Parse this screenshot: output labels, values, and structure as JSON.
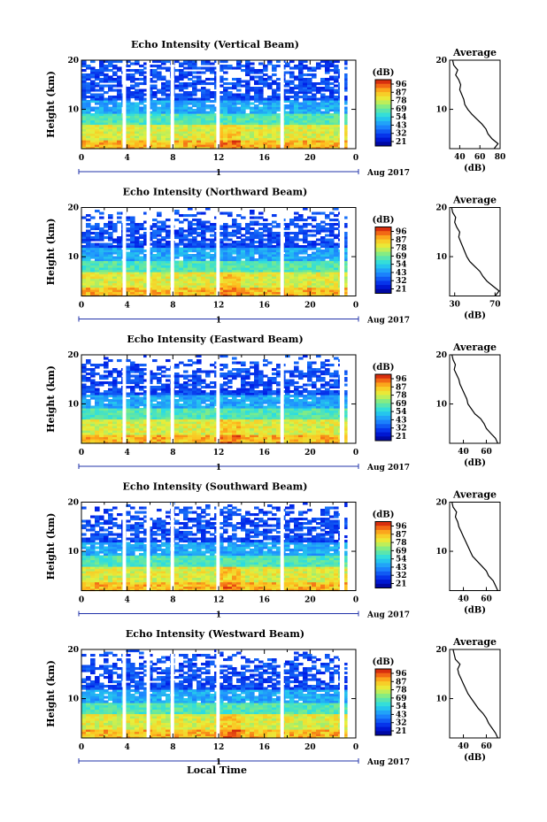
{
  "chart_data": [
    {
      "type": "heatmap",
      "title": "Echo Intensity (Vertical Beam)",
      "ylabel": "Height (km)",
      "xticks": [
        "0",
        "4",
        "8",
        "12",
        "16",
        "20",
        "0"
      ],
      "yticks": [
        "20",
        "10"
      ],
      "ylim": [
        2,
        20
      ],
      "xlim": [
        0,
        24
      ],
      "date_label": "Aug 2017",
      "day_marker": "1",
      "colorbar": {
        "unit": "(dB)",
        "ticks": [
          "96",
          "87",
          "78",
          "69",
          "54",
          "43",
          "32",
          "21"
        ],
        "range": [
          21,
          96
        ]
      },
      "data_gaps_hours": [
        [
          3.6,
          3.9
        ],
        [
          5.7,
          6.0
        ],
        [
          7.8,
          8.1
        ],
        [
          11.8,
          12.1
        ],
        [
          17.4,
          17.7
        ],
        [
          22.6,
          23.0
        ]
      ],
      "average": {
        "title": "Average",
        "xlabel": "(dB)",
        "xticks": [
          "40",
          "60",
          "80"
        ],
        "xlim": [
          30,
          80
        ],
        "profile": [
          [
            2,
            74
          ],
          [
            3,
            78
          ],
          [
            4,
            72
          ],
          [
            5,
            68
          ],
          [
            6,
            66
          ],
          [
            7,
            62
          ],
          [
            8,
            57
          ],
          [
            9,
            52
          ],
          [
            10,
            48
          ],
          [
            11,
            45
          ],
          [
            12,
            44
          ],
          [
            13,
            42
          ],
          [
            14,
            40
          ],
          [
            15,
            41
          ],
          [
            16,
            39
          ],
          [
            17,
            36
          ],
          [
            18,
            38
          ],
          [
            19,
            34
          ],
          [
            20,
            33
          ]
        ]
      }
    },
    {
      "type": "heatmap",
      "title": "Echo Intensity (Northward Beam)",
      "ylabel": "Height (km)",
      "xticks": [
        "0",
        "4",
        "8",
        "12",
        "16",
        "20",
        "0"
      ],
      "yticks": [
        "20",
        "10"
      ],
      "ylim": [
        2,
        20
      ],
      "xlim": [
        0,
        24
      ],
      "date_label": "Aug 2017",
      "day_marker": "1",
      "colorbar": {
        "unit": "(dB)",
        "ticks": [
          "96",
          "87",
          "78",
          "69",
          "54",
          "43",
          "32",
          "21"
        ],
        "range": [
          21,
          96
        ]
      },
      "data_gaps_hours": [
        [
          3.6,
          3.9
        ],
        [
          5.7,
          6.0
        ],
        [
          7.8,
          8.1
        ],
        [
          11.8,
          12.1
        ],
        [
          17.4,
          17.7
        ],
        [
          22.6,
          23.0
        ]
      ],
      "average": {
        "title": "Average",
        "xlabel": "(dB)",
        "xticks": [
          "30",
          "70"
        ],
        "xlim": [
          25,
          75
        ],
        "profile": [
          [
            2,
            70
          ],
          [
            3,
            74
          ],
          [
            4,
            68
          ],
          [
            5,
            62
          ],
          [
            6,
            58
          ],
          [
            7,
            55
          ],
          [
            8,
            50
          ],
          [
            9,
            45
          ],
          [
            10,
            42
          ],
          [
            11,
            40
          ],
          [
            12,
            38
          ],
          [
            13,
            36
          ],
          [
            14,
            34
          ],
          [
            15,
            35
          ],
          [
            16,
            32
          ],
          [
            17,
            30
          ],
          [
            18,
            31
          ],
          [
            19,
            28
          ],
          [
            20,
            27
          ]
        ]
      }
    },
    {
      "type": "heatmap",
      "title": "Echo Intensity (Eastward Beam)",
      "ylabel": "Height (km)",
      "xticks": [
        "0",
        "4",
        "8",
        "12",
        "16",
        "20",
        "0"
      ],
      "yticks": [
        "20",
        "10"
      ],
      "ylim": [
        2,
        20
      ],
      "xlim": [
        0,
        24
      ],
      "date_label": "Aug 2017",
      "day_marker": "1",
      "colorbar": {
        "unit": "(dB)",
        "ticks": [
          "96",
          "87",
          "78",
          "69",
          "54",
          "43",
          "32",
          "21"
        ],
        "range": [
          21,
          96
        ]
      },
      "data_gaps_hours": [
        [
          3.6,
          3.9
        ],
        [
          5.7,
          6.0
        ],
        [
          7.8,
          8.1
        ],
        [
          11.8,
          12.1
        ],
        [
          17.4,
          17.7
        ],
        [
          22.6,
          23.0
        ]
      ],
      "average": {
        "title": "Average",
        "xlabel": "(dB)",
        "xticks": [
          "40",
          "60"
        ],
        "xlim": [
          28,
          72
        ],
        "profile": [
          [
            2,
            70
          ],
          [
            3,
            68
          ],
          [
            4,
            64
          ],
          [
            5,
            60
          ],
          [
            6,
            58
          ],
          [
            7,
            55
          ],
          [
            8,
            50
          ],
          [
            9,
            47
          ],
          [
            10,
            44
          ],
          [
            11,
            43
          ],
          [
            12,
            41
          ],
          [
            13,
            39
          ],
          [
            14,
            37
          ],
          [
            15,
            36
          ],
          [
            16,
            34
          ],
          [
            17,
            32
          ],
          [
            18,
            33
          ],
          [
            19,
            31
          ],
          [
            20,
            30
          ]
        ]
      }
    },
    {
      "type": "heatmap",
      "title": "Echo Intensity (Southward Beam)",
      "ylabel": "Height (km)",
      "xticks": [
        "0",
        "4",
        "8",
        "12",
        "16",
        "20",
        "0"
      ],
      "yticks": [
        "20",
        "10"
      ],
      "ylim": [
        2,
        20
      ],
      "xlim": [
        0,
        24
      ],
      "date_label": "Aug 2017",
      "day_marker": "1",
      "colorbar": {
        "unit": "(dB)",
        "ticks": [
          "96",
          "87",
          "78",
          "69",
          "54",
          "43",
          "32",
          "21"
        ],
        "range": [
          21,
          96
        ]
      },
      "data_gaps_hours": [
        [
          3.6,
          3.9
        ],
        [
          5.7,
          6.0
        ],
        [
          7.8,
          8.1
        ],
        [
          11.8,
          12.1
        ],
        [
          17.4,
          17.7
        ],
        [
          22.6,
          23.0
        ]
      ],
      "average": {
        "title": "Average",
        "xlabel": "(dB)",
        "xticks": [
          "40",
          "60"
        ],
        "xlim": [
          28,
          72
        ],
        "profile": [
          [
            2,
            70
          ],
          [
            3,
            68
          ],
          [
            4,
            66
          ],
          [
            5,
            62
          ],
          [
            6,
            60
          ],
          [
            7,
            56
          ],
          [
            8,
            52
          ],
          [
            9,
            48
          ],
          [
            10,
            46
          ],
          [
            11,
            44
          ],
          [
            12,
            42
          ],
          [
            13,
            40
          ],
          [
            14,
            38
          ],
          [
            15,
            36
          ],
          [
            16,
            35
          ],
          [
            17,
            33
          ],
          [
            18,
            34
          ],
          [
            19,
            31
          ],
          [
            20,
            30
          ]
        ]
      }
    },
    {
      "type": "heatmap",
      "title": "Echo Intensity (Westward Beam)",
      "ylabel": "Height (km)",
      "xticks": [
        "0",
        "4",
        "8",
        "12",
        "16",
        "20",
        "0"
      ],
      "yticks": [
        "20",
        "10"
      ],
      "ylim": [
        2,
        20
      ],
      "xlim": [
        0,
        24
      ],
      "date_label": "Aug 2017",
      "day_marker": "1",
      "xlabel": "Local Time",
      "colorbar": {
        "unit": "(dB)",
        "ticks": [
          "96",
          "87",
          "78",
          "69",
          "54",
          "43",
          "32",
          "21"
        ],
        "range": [
          21,
          96
        ]
      },
      "data_gaps_hours": [
        [
          3.6,
          3.9
        ],
        [
          5.7,
          6.0
        ],
        [
          7.8,
          8.1
        ],
        [
          11.8,
          12.1
        ],
        [
          17.4,
          17.7
        ],
        [
          22.6,
          23.0
        ]
      ],
      "average": {
        "title": "Average",
        "xlabel": "(dB)",
        "xticks": [
          "40",
          "60"
        ],
        "xlim": [
          28,
          72
        ],
        "profile": [
          [
            2,
            70
          ],
          [
            3,
            68
          ],
          [
            4,
            65
          ],
          [
            5,
            62
          ],
          [
            6,
            60
          ],
          [
            7,
            57
          ],
          [
            8,
            53
          ],
          [
            9,
            50
          ],
          [
            10,
            47
          ],
          [
            11,
            44
          ],
          [
            12,
            42
          ],
          [
            13,
            40
          ],
          [
            14,
            38
          ],
          [
            15,
            36
          ],
          [
            16,
            35
          ],
          [
            17,
            37
          ],
          [
            18,
            33
          ],
          [
            19,
            32
          ],
          [
            20,
            31
          ]
        ]
      }
    }
  ]
}
